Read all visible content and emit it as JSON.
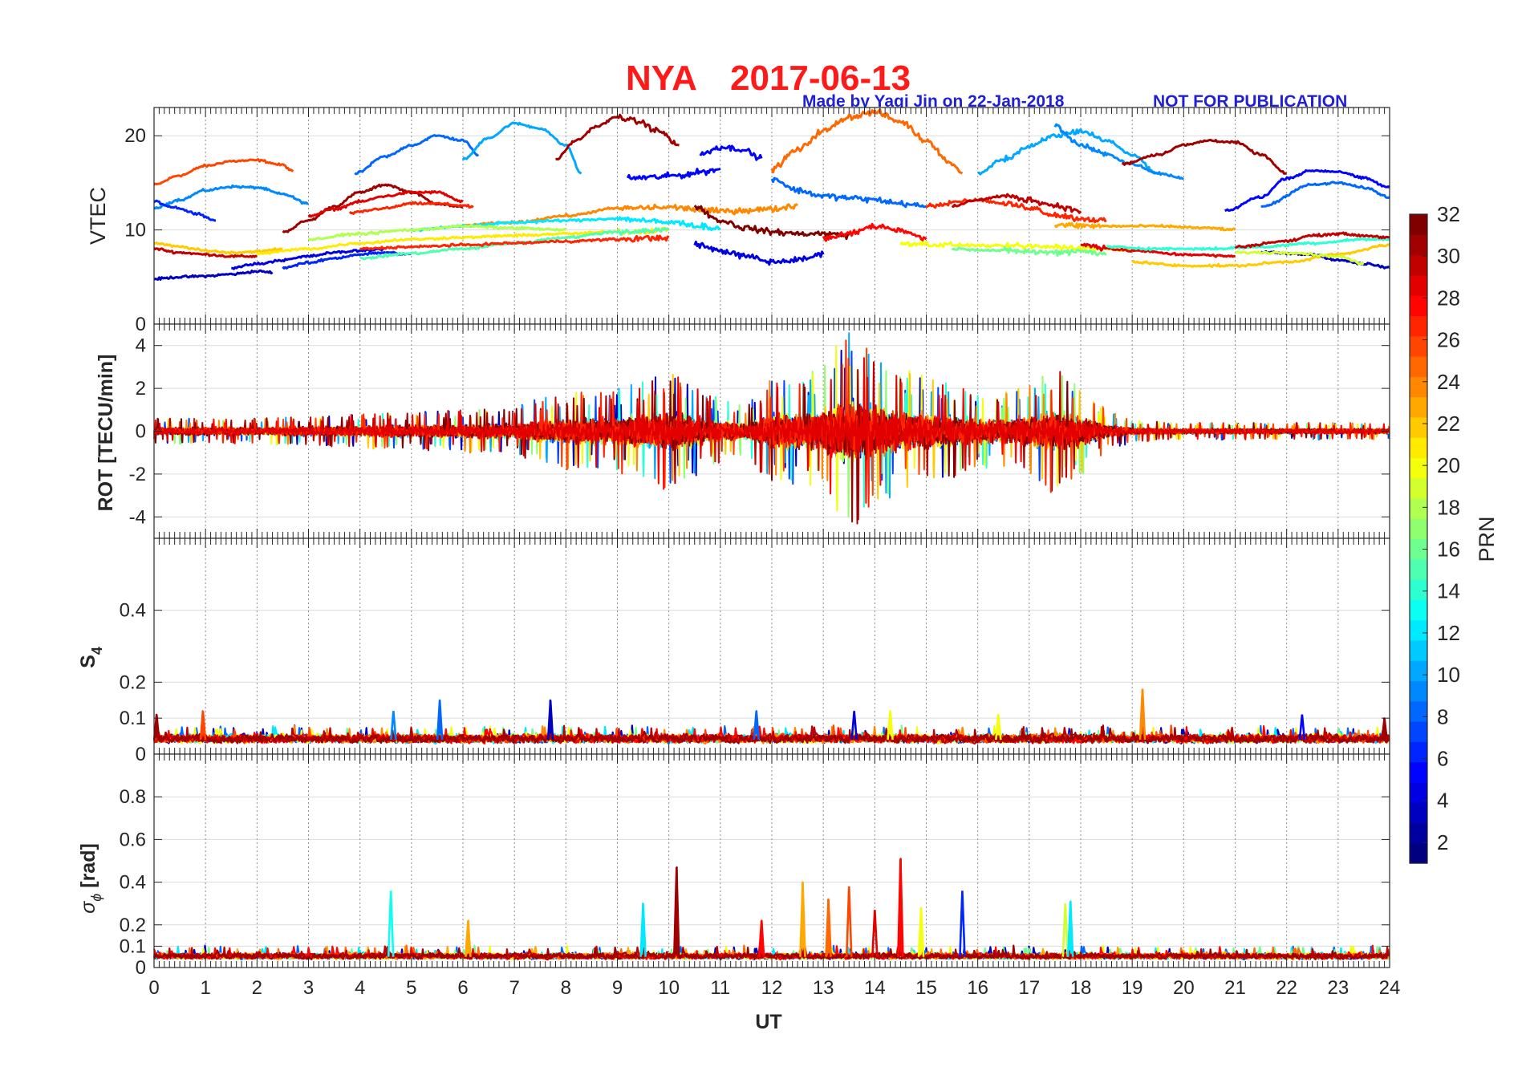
{
  "figure": {
    "title_station": "NYA",
    "title_date": "2017-06-13",
    "credit": "Made by Yaqi Jin on 22-Jan-2018",
    "notice": "NOT FOR PUBLICATION",
    "xlabel": "UT"
  },
  "colorbar": {
    "label": "PRN",
    "ticks": [
      "2",
      "4",
      "6",
      "8",
      "10",
      "12",
      "14",
      "16",
      "18",
      "20",
      "22",
      "24",
      "26",
      "28",
      "30",
      "32"
    ],
    "range": [
      1,
      32
    ],
    "colormap": "jet"
  },
  "chart_data": [
    {
      "type": "line",
      "panel": "vtec",
      "ylabel": "VTEC",
      "xlim": [
        0,
        24
      ],
      "ylim": [
        0,
        23
      ],
      "yticks": [
        0,
        10,
        20
      ],
      "ytick_labels": [
        "0",
        "10",
        "20"
      ],
      "grid": true,
      "series_note": "one trace per satellite PRN, colored by PRN",
      "baseline_traces": [
        {
          "prn": 26,
          "x": [
            0.0,
            0.5,
            1.0,
            1.5,
            2.0,
            2.5,
            2.7
          ],
          "y": [
            14.8,
            15.8,
            16.8,
            17.3,
            17.4,
            16.9,
            16.2
          ]
        },
        {
          "prn": 9,
          "x": [
            0.0,
            0.5,
            1.0,
            1.5,
            2.0,
            2.5,
            3.0
          ],
          "y": [
            12.3,
            13.2,
            14.2,
            14.6,
            14.5,
            13.8,
            12.8
          ]
        },
        {
          "prn": 6,
          "x": [
            0.0,
            0.4,
            0.8,
            1.2
          ],
          "y": [
            13.0,
            12.4,
            11.8,
            11.0
          ]
        },
        {
          "prn": 3,
          "x": [
            0.0,
            0.5,
            1.0,
            1.5,
            2.0,
            2.3
          ],
          "y": [
            4.8,
            5.0,
            5.1,
            5.3,
            5.6,
            5.5
          ]
        },
        {
          "prn": 30,
          "x": [
            0.0,
            0.5,
            1.0,
            1.5,
            2.0
          ],
          "y": [
            8.0,
            7.6,
            7.4,
            7.2,
            7.2
          ]
        },
        {
          "prn": 22,
          "x": [
            0.0,
            0.5,
            1.0,
            1.5,
            2.0,
            2.5
          ],
          "y": [
            8.6,
            8.2,
            7.8,
            7.6,
            7.7,
            8.0
          ]
        },
        {
          "prn": 31,
          "x": [
            2.5,
            3.0,
            3.5,
            4.0,
            4.5,
            5.0,
            5.5,
            6.0
          ],
          "y": [
            9.8,
            11.0,
            12.5,
            14.0,
            14.8,
            14.0,
            12.8,
            12.4
          ]
        },
        {
          "prn": 29,
          "x": [
            3.0,
            3.5,
            4.0,
            4.5,
            5.0,
            5.5,
            6.0
          ],
          "y": [
            11.5,
            12.2,
            13.0,
            13.6,
            14.0,
            14.0,
            13.0
          ]
        },
        {
          "prn": 27,
          "x": [
            3.8,
            4.5,
            5.0,
            5.5,
            6.0,
            6.2
          ],
          "y": [
            11.8,
            12.3,
            12.8,
            12.8,
            12.6,
            12.4
          ]
        },
        {
          "prn": 8,
          "x": [
            3.9,
            4.5,
            5.0,
            5.5,
            6.0,
            6.3
          ],
          "y": [
            16.0,
            17.8,
            19.0,
            20.0,
            19.5,
            18.0
          ]
        },
        {
          "prn": 10,
          "x": [
            6.0,
            6.5,
            7.0,
            7.5,
            8.0,
            8.3
          ],
          "y": [
            17.5,
            19.8,
            21.3,
            20.8,
            19.0,
            16.0
          ]
        },
        {
          "prn": 31,
          "x": [
            7.8,
            8.2,
            8.6,
            9.0,
            9.4,
            9.8,
            10.2
          ],
          "y": [
            17.5,
            19.5,
            21.0,
            22.0,
            21.5,
            20.5,
            19.0
          ]
        },
        {
          "prn": 5,
          "x": [
            9.2,
            9.7,
            10.2,
            10.7,
            11.0
          ],
          "y": [
            15.5,
            15.6,
            15.8,
            16.2,
            16.5
          ]
        },
        {
          "prn": 5,
          "x": [
            10.6,
            11.0,
            11.4,
            11.8
          ],
          "y": [
            18.0,
            18.8,
            18.6,
            17.6
          ]
        },
        {
          "prn": 25,
          "x": [
            12.0,
            12.5,
            13.0,
            13.5,
            14.0,
            14.5,
            15.0,
            15.5,
            15.7
          ],
          "y": [
            16.5,
            18.5,
            20.5,
            22.0,
            22.5,
            21.5,
            19.5,
            17.0,
            16.0
          ]
        },
        {
          "prn": 8,
          "x": [
            12.0,
            12.5,
            13.0,
            13.5,
            14.0,
            14.5,
            15.0
          ],
          "y": [
            15.5,
            14.2,
            13.6,
            13.4,
            13.2,
            12.8,
            12.5
          ]
        },
        {
          "prn": 10,
          "x": [
            16.0,
            16.5,
            17.0,
            17.5,
            18.0,
            18.5,
            19.0,
            19.5
          ],
          "y": [
            16.0,
            17.5,
            18.8,
            20.0,
            20.5,
            19.5,
            18.0,
            16.0
          ]
        },
        {
          "prn": 9,
          "x": [
            17.5,
            18.0,
            18.5,
            19.0,
            19.5,
            20.0
          ],
          "y": [
            21.0,
            19.0,
            18.0,
            17.0,
            16.0,
            15.5
          ]
        },
        {
          "prn": 31,
          "x": [
            18.8,
            19.5,
            20.0,
            20.5,
            21.0,
            21.5,
            22.0
          ],
          "y": [
            17.0,
            18.0,
            19.0,
            19.5,
            19.3,
            18.0,
            16.0
          ]
        },
        {
          "prn": 5,
          "x": [
            20.8,
            21.5,
            22.0,
            22.5,
            23.0,
            23.5,
            24.0
          ],
          "y": [
            12.0,
            13.5,
            15.5,
            16.3,
            16.2,
            15.5,
            14.5
          ]
        },
        {
          "prn": 8,
          "x": [
            21.5,
            22.5,
            23.0,
            23.5,
            24.0
          ],
          "y": [
            12.5,
            14.8,
            15.0,
            14.5,
            13.5
          ]
        },
        {
          "prn": 27,
          "x": [
            15.0,
            15.5,
            16.0,
            16.5,
            17.0,
            17.5,
            18.0,
            18.5
          ],
          "y": [
            12.5,
            13.0,
            13.2,
            12.8,
            12.4,
            11.6,
            11.2,
            11.0
          ]
        },
        {
          "prn": 30,
          "x": [
            15.5,
            16.0,
            16.5,
            17.0,
            17.5,
            18.0
          ],
          "y": [
            12.5,
            13.2,
            13.6,
            13.2,
            12.6,
            12.0
          ]
        },
        {
          "prn": 23,
          "x": [
            17.5,
            18.5,
            19.5,
            20.5,
            21.0
          ],
          "y": [
            10.5,
            10.4,
            10.4,
            10.2,
            10.0
          ]
        },
        {
          "prn": 24,
          "x": [
            6.0,
            7.0,
            8.0,
            9.0,
            10.0,
            11.0,
            12.0,
            12.5
          ],
          "y": [
            10.5,
            10.8,
            11.5,
            12.3,
            12.4,
            12.0,
            12.2,
            12.6
          ]
        },
        {
          "prn": 32,
          "x": [
            10.5,
            11.0,
            11.5,
            12.0,
            12.5,
            13.0,
            13.5
          ],
          "y": [
            12.5,
            11.0,
            10.2,
            9.8,
            9.6,
            9.6,
            9.4
          ]
        },
        {
          "prn": 4,
          "x": [
            10.5,
            11.0,
            11.5,
            12.0,
            12.5,
            13.0
          ],
          "y": [
            8.5,
            7.8,
            7.2,
            6.6,
            6.8,
            7.4
          ]
        },
        {
          "prn": 4,
          "x": [
            1.5,
            2.0,
            2.5,
            3.0,
            3.5,
            4.0,
            4.5
          ],
          "y": [
            6.0,
            6.4,
            6.8,
            7.2,
            7.6,
            7.8,
            8.0
          ]
        },
        {
          "prn": 6,
          "x": [
            2.5,
            3.0,
            3.5,
            4.0,
            4.5,
            5.0
          ],
          "y": [
            6.0,
            6.5,
            7.0,
            7.4,
            7.6,
            7.4
          ]
        },
        {
          "prn": 21,
          "x": [
            2.0,
            3.0,
            4.0,
            5.0,
            6.0,
            7.0,
            8.0,
            9.0,
            10.0
          ],
          "y": [
            7.5,
            8.0,
            8.6,
            9.0,
            9.2,
            9.4,
            9.6,
            9.8,
            10.0
          ]
        },
        {
          "prn": 15,
          "x": [
            4.0,
            5.0,
            6.0,
            7.0,
            8.0,
            9.0,
            10.0
          ],
          "y": [
            7.0,
            7.5,
            8.0,
            8.6,
            9.2,
            9.8,
            10.0
          ]
        },
        {
          "prn": 12,
          "x": [
            5.0,
            6.0,
            7.0,
            8.0,
            9.0,
            10.0,
            11.0
          ],
          "y": [
            10.0,
            10.4,
            10.8,
            11.0,
            11.2,
            10.8,
            10.2
          ]
        },
        {
          "prn": 18,
          "x": [
            3.0,
            4.0,
            5.0,
            6.0,
            7.0,
            8.0
          ],
          "y": [
            9.0,
            9.6,
            10.0,
            10.4,
            10.2,
            10.0
          ]
        },
        {
          "prn": 27,
          "x": [
            4.0,
            5.0,
            6.0,
            7.0,
            8.0,
            9.0,
            10.0
          ],
          "y": [
            8.0,
            8.2,
            8.4,
            8.6,
            8.8,
            9.0,
            9.2
          ]
        },
        {
          "prn": 28,
          "x": [
            13.0,
            13.5,
            14.0,
            14.5,
            15.0
          ],
          "y": [
            9.0,
            9.6,
            10.4,
            10.0,
            9.0
          ]
        },
        {
          "prn": 20,
          "x": [
            14.5,
            15.5,
            16.5,
            17.5,
            18.5,
            19.0
          ],
          "y": [
            8.6,
            8.4,
            8.3,
            8.2,
            8.0,
            7.8
          ]
        },
        {
          "prn": 16,
          "x": [
            15.5,
            16.5,
            17.5,
            18.0,
            18.5
          ],
          "y": [
            8.0,
            7.8,
            7.6,
            7.8,
            7.4
          ]
        },
        {
          "prn": 29,
          "x": [
            18.0,
            19.0,
            20.0,
            21.0
          ],
          "y": [
            8.4,
            7.8,
            7.4,
            7.2
          ]
        },
        {
          "prn": 22,
          "x": [
            19.0,
            20.0,
            21.0,
            22.0,
            23.0,
            24.0
          ],
          "y": [
            6.6,
            6.2,
            6.2,
            6.6,
            7.4,
            8.4
          ]
        },
        {
          "prn": 14,
          "x": [
            18.5,
            19.5,
            20.5,
            21.5,
            22.5,
            23.5,
            24.0
          ],
          "y": [
            8.2,
            8.0,
            8.0,
            8.2,
            8.6,
            9.0,
            9.0
          ]
        },
        {
          "prn": 30,
          "x": [
            21.0,
            22.0,
            22.5,
            23.0,
            23.5,
            24.0
          ],
          "y": [
            8.2,
            8.8,
            9.4,
            9.6,
            9.4,
            9.2
          ]
        },
        {
          "prn": 3,
          "x": [
            21.5,
            22.5,
            23.0,
            23.5,
            24.0
          ],
          "y": [
            7.6,
            7.4,
            6.8,
            6.4,
            6.0
          ]
        },
        {
          "prn": 19,
          "x": [
            21.0,
            22.0,
            23.0,
            23.5
          ],
          "y": [
            7.6,
            7.6,
            7.2,
            6.4
          ]
        }
      ]
    },
    {
      "type": "line",
      "panel": "rot",
      "ylabel": "ROT [TECU/min]",
      "xlim": [
        0,
        24
      ],
      "ylim": [
        -5,
        5
      ],
      "yticks": [
        -4,
        -2,
        0,
        2,
        4
      ],
      "ytick_labels": [
        "-4",
        "-2",
        "0",
        "2",
        "4"
      ],
      "grid": true,
      "envelope_x": [
        0,
        1,
        2,
        3,
        4,
        5,
        6,
        7,
        7.5,
        8,
        9,
        9.5,
        10,
        10.5,
        11,
        11.5,
        12,
        12.5,
        13,
        13.3,
        13.5,
        14,
        14.5,
        15,
        15.5,
        16,
        16.5,
        17,
        17.5,
        18,
        18.5,
        19,
        20,
        21,
        22,
        23,
        24
      ],
      "envelope_amp": [
        0.6,
        0.6,
        0.6,
        0.7,
        0.8,
        0.9,
        1.0,
        1.1,
        1.6,
        1.8,
        2.0,
        2.4,
        2.8,
        2.2,
        1.5,
        1.2,
        2.5,
        2.6,
        3.0,
        4.4,
        4.7,
        3.6,
        3.0,
        2.6,
        2.2,
        1.8,
        1.8,
        2.2,
        3.0,
        2.2,
        1.0,
        0.5,
        0.4,
        0.4,
        0.4,
        0.4,
        0.4
      ]
    },
    {
      "type": "line",
      "panel": "s4",
      "ylabel": "S",
      "ylabel_sub": "4",
      "xlim": [
        0,
        24
      ],
      "ylim": [
        0,
        0.6
      ],
      "yticks": [
        0,
        0.1,
        0.2,
        0.4
      ],
      "ytick_labels": [
        "0",
        "0.1",
        "0.2",
        "0.4"
      ],
      "grid": true,
      "baseline": 0.04,
      "spikes": [
        {
          "x": 0.05,
          "y": 0.11,
          "prn": 31
        },
        {
          "x": 0.95,
          "y": 0.12,
          "prn": 26
        },
        {
          "x": 4.65,
          "y": 0.12,
          "prn": 9
        },
        {
          "x": 5.55,
          "y": 0.15,
          "prn": 8
        },
        {
          "x": 7.7,
          "y": 0.15,
          "prn": 3
        },
        {
          "x": 11.7,
          "y": 0.12,
          "prn": 8
        },
        {
          "x": 13.6,
          "y": 0.12,
          "prn": 4
        },
        {
          "x": 14.3,
          "y": 0.12,
          "prn": 20
        },
        {
          "x": 16.4,
          "y": 0.11,
          "prn": 20
        },
        {
          "x": 19.2,
          "y": 0.18,
          "prn": 24
        },
        {
          "x": 22.3,
          "y": 0.11,
          "prn": 5
        },
        {
          "x": 23.9,
          "y": 0.1,
          "prn": 31
        }
      ]
    },
    {
      "type": "line",
      "panel": "sigma_phi",
      "ylabel": "σ",
      "ylabel_sub": "ϕ",
      "ylabel_unit": " [rad]",
      "xlim": [
        0,
        24
      ],
      "ylim": [
        0,
        1
      ],
      "yticks": [
        0,
        0.1,
        0.2,
        0.4,
        0.6,
        0.8
      ],
      "ytick_labels": [
        "0",
        "0.1",
        "0.2",
        "0.4",
        "0.6",
        "0.8"
      ],
      "grid": true,
      "baseline": 0.05,
      "spikes": [
        {
          "x": 4.6,
          "y": 0.36,
          "prn": 13
        },
        {
          "x": 6.1,
          "y": 0.22,
          "prn": 23
        },
        {
          "x": 9.5,
          "y": 0.3,
          "prn": 12
        },
        {
          "x": 10.15,
          "y": 0.47,
          "prn": 31
        },
        {
          "x": 11.8,
          "y": 0.22,
          "prn": 28
        },
        {
          "x": 12.6,
          "y": 0.4,
          "prn": 23
        },
        {
          "x": 13.1,
          "y": 0.32,
          "prn": 25
        },
        {
          "x": 13.5,
          "y": 0.38,
          "prn": 26
        },
        {
          "x": 14.0,
          "y": 0.27,
          "prn": 29
        },
        {
          "x": 14.5,
          "y": 0.51,
          "prn": 28
        },
        {
          "x": 14.9,
          "y": 0.28,
          "prn": 20
        },
        {
          "x": 15.7,
          "y": 0.36,
          "prn": 6
        },
        {
          "x": 17.7,
          "y": 0.3,
          "prn": 19
        },
        {
          "x": 17.8,
          "y": 0.31,
          "prn": 12
        }
      ]
    }
  ],
  "xaxis": {
    "ticks": [
      "0",
      "1",
      "2",
      "3",
      "4",
      "5",
      "6",
      "7",
      "8",
      "9",
      "10",
      "11",
      "12",
      "13",
      "14",
      "15",
      "16",
      "17",
      "18",
      "19",
      "20",
      "21",
      "22",
      "23",
      "24"
    ]
  }
}
